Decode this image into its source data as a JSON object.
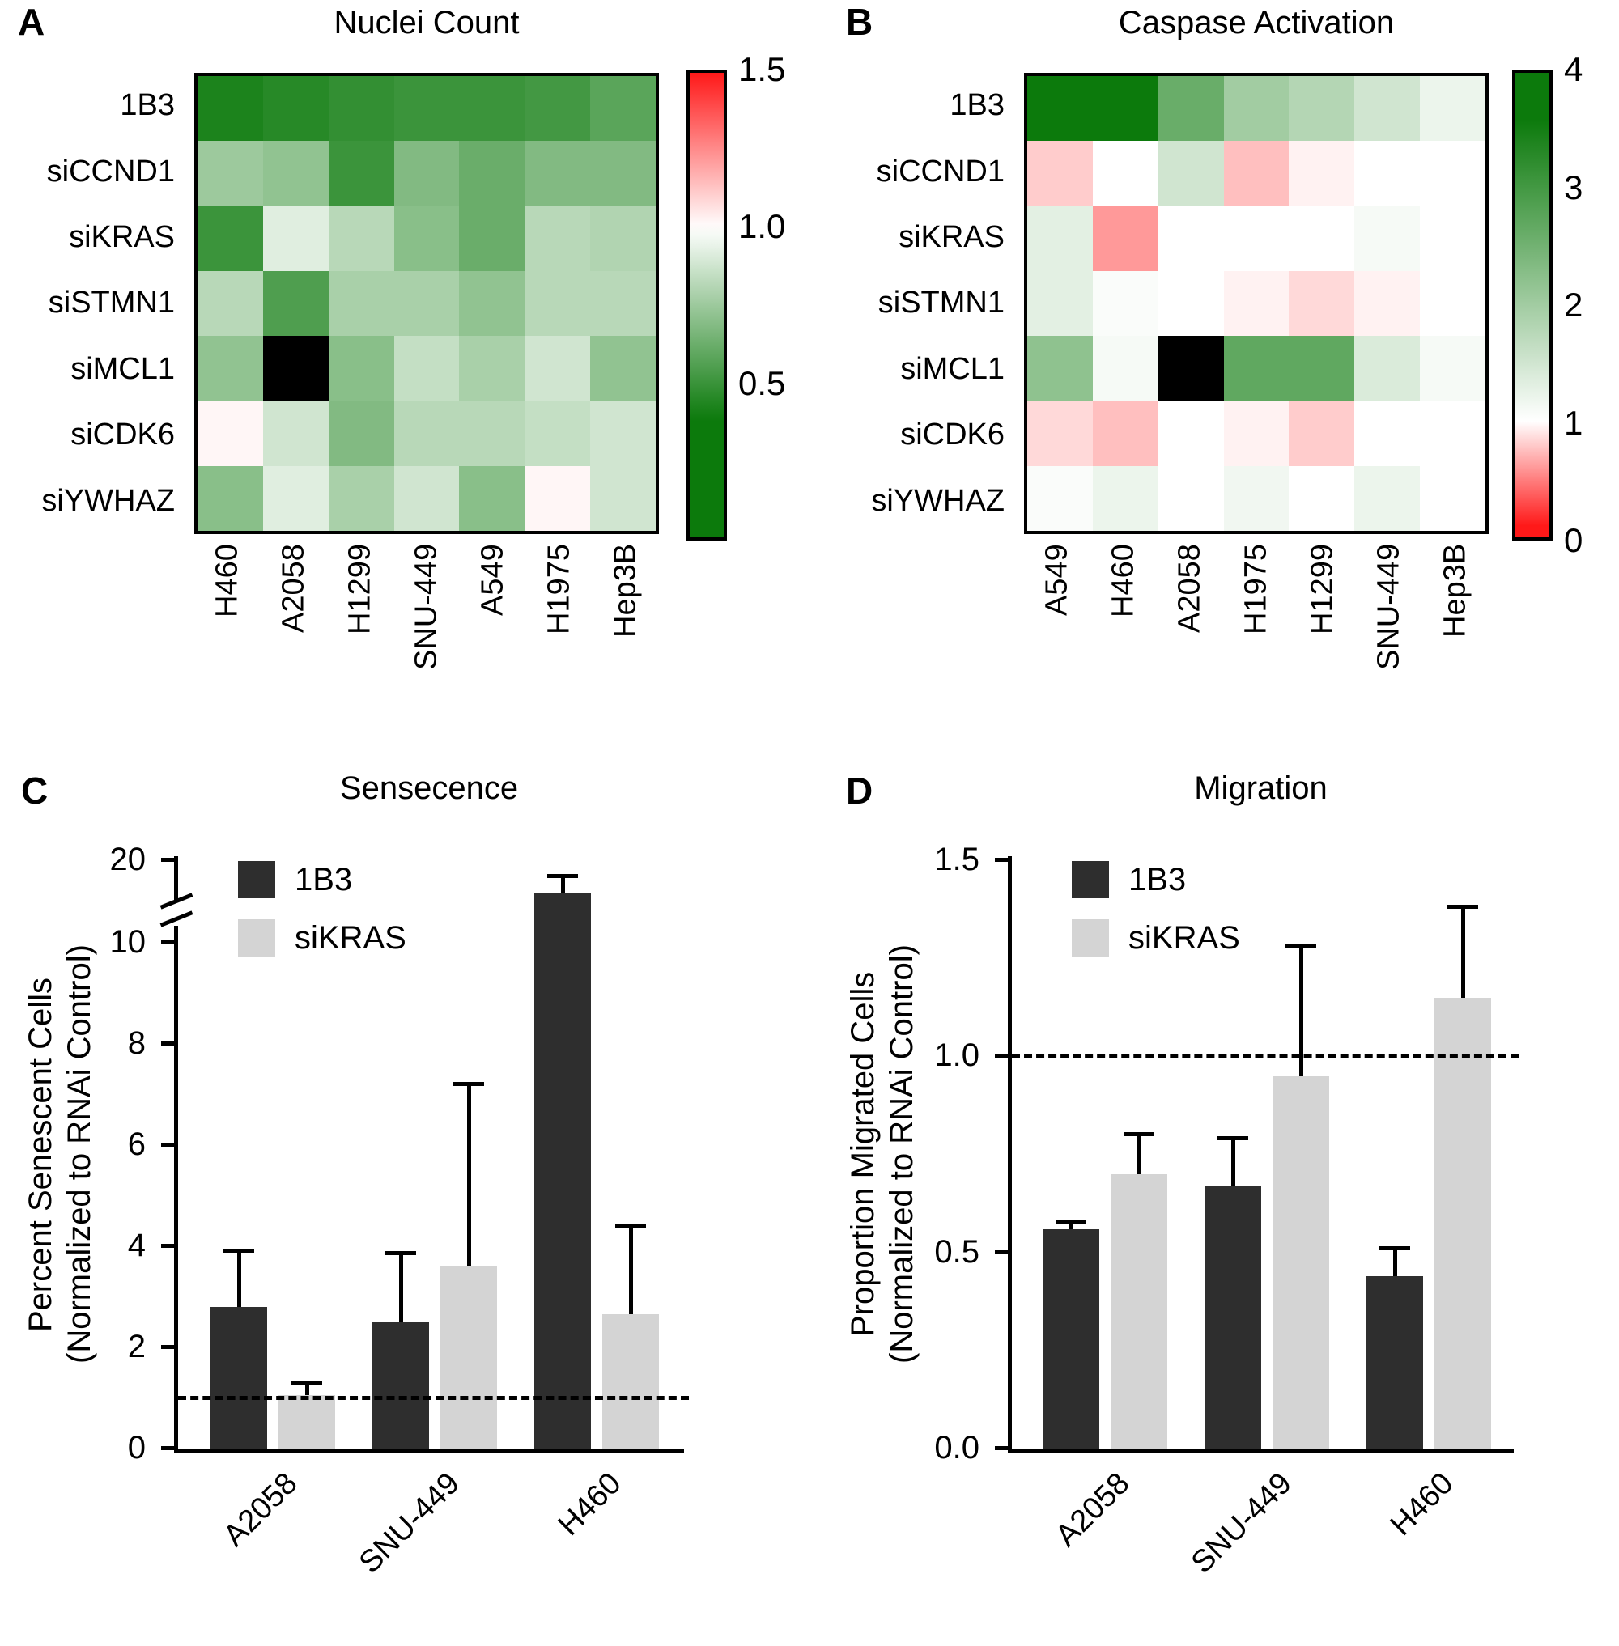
{
  "panels": {
    "A": {
      "label": "A",
      "title": "Nuclei Count"
    },
    "B": {
      "label": "B",
      "title": "Caspase Activation"
    },
    "C": {
      "label": "C",
      "title": "Sensecence"
    },
    "D": {
      "label": "D",
      "title": "Migration"
    }
  },
  "colors": {
    "series": {
      "1B3": "#2e2e2e",
      "siKRAS": "#d4d4d4"
    },
    "heat_green": "#0c7a0c",
    "heat_red": "#ff1919",
    "missing_cell": "#000000",
    "axis": "#000000"
  },
  "chart_data": [
    {
      "id": "A",
      "type": "heatmap",
      "title": "Nuclei Count",
      "rows": [
        "1B3",
        "siCCND1",
        "siKRAS",
        "siSTMN1",
        "siMCL1",
        "siCDK6",
        "siYWHAZ"
      ],
      "columns": [
        "H460",
        "A2058",
        "H1299",
        "SNU-449",
        "A549",
        "H1975",
        "Hep3B"
      ],
      "values": [
        [
          0.42,
          0.45,
          0.48,
          0.5,
          0.5,
          0.52,
          0.58
        ],
        [
          0.75,
          0.72,
          0.5,
          0.68,
          0.62,
          0.68,
          0.68
        ],
        [
          0.5,
          0.92,
          0.82,
          0.7,
          0.62,
          0.82,
          0.8
        ],
        [
          0.82,
          0.55,
          0.78,
          0.78,
          0.72,
          0.82,
          0.82
        ],
        [
          0.72,
          null,
          0.7,
          0.85,
          0.78,
          0.88,
          0.72
        ],
        [
          1.02,
          0.88,
          0.68,
          0.82,
          0.82,
          0.85,
          0.88
        ],
        [
          0.7,
          0.92,
          0.78,
          0.88,
          0.7,
          1.02,
          0.88
        ]
      ],
      "note_null_cells": "black = not measured (siMCL1 / A2058)",
      "colormap": {
        "min": 0,
        "max": 1.5,
        "center": 1.0,
        "low_color": "green",
        "high_color": "red",
        "low_span": 0.62,
        "high_span": 0.5
      },
      "colorbar_ticks": [
        {
          "v": 1.5,
          "label": "1.5"
        },
        {
          "v": 1.0,
          "label": "1.0"
        },
        {
          "v": 0.5,
          "label": "0.5"
        }
      ]
    },
    {
      "id": "B",
      "type": "heatmap",
      "title": "Caspase Activation",
      "rows": [
        "1B3",
        "siCCND1",
        "siKRAS",
        "siSTMN1",
        "siMCL1",
        "siCDK6",
        "siYWHAZ"
      ],
      "columns": [
        "A549",
        "H460",
        "A2058",
        "H1975",
        "H1299",
        "SNU-449",
        "Hep3B"
      ],
      "values": [
        [
          3.8,
          3.8,
          2.6,
          2.0,
          1.8,
          1.5,
          1.2
        ],
        [
          0.8,
          1.0,
          1.5,
          0.75,
          0.95,
          1.0,
          1.0
        ],
        [
          1.3,
          0.6,
          1.0,
          1.0,
          1.0,
          1.1,
          1.0
        ],
        [
          1.3,
          1.05,
          1.0,
          0.95,
          0.85,
          0.95,
          1.0
        ],
        [
          2.2,
          1.1,
          null,
          2.7,
          2.7,
          1.4,
          1.1
        ],
        [
          0.85,
          0.75,
          1.0,
          0.95,
          0.8,
          1.0,
          1.0
        ],
        [
          1.05,
          1.2,
          1.0,
          1.15,
          1.0,
          1.2,
          1.0
        ]
      ],
      "note_null_cells": "black = not measured (siMCL1 / A2058)",
      "colormap": {
        "min": 0,
        "max": 4,
        "center": 1.0,
        "low_color": "red",
        "high_color": "green",
        "low_span": 0.9,
        "high_span": 2.6
      },
      "colorbar_ticks": [
        {
          "v": 4,
          "label": "4"
        },
        {
          "v": 3,
          "label": "3"
        },
        {
          "v": 2,
          "label": "2"
        },
        {
          "v": 1,
          "label": "1"
        },
        {
          "v": 0,
          "label": "0"
        }
      ]
    },
    {
      "id": "C",
      "type": "bar",
      "title": "Sensecence",
      "ylabel": [
        "Percent Senescent Cells",
        "(Normalized to RNAi Control)"
      ],
      "categories": [
        "A2058",
        "SNU-449",
        "H460"
      ],
      "series": [
        {
          "name": "1B3",
          "values": [
            2.8,
            2.5,
            16.0
          ],
          "errors": [
            1.1,
            1.35,
            2.0
          ]
        },
        {
          "name": "siKRAS",
          "values": [
            1.05,
            3.6,
            2.65
          ],
          "errors": [
            0.25,
            3.6,
            1.75
          ]
        }
      ],
      "yticks": [
        {
          "v": 0,
          "label": "0"
        },
        {
          "v": 2,
          "label": "2"
        },
        {
          "v": 4,
          "label": "4"
        },
        {
          "v": 6,
          "label": "6"
        },
        {
          "v": 8,
          "label": "8"
        },
        {
          "v": 10,
          "label": "10"
        },
        {
          "v": 20,
          "label": "20"
        }
      ],
      "ylim": [
        0,
        20
      ],
      "axis_break_between": [
        10,
        20
      ],
      "reference_line": 1.0,
      "legend": [
        "1B3",
        "siKRAS"
      ]
    },
    {
      "id": "D",
      "type": "bar",
      "title": "Migration",
      "ylabel": [
        "Proportion Migrated Cells",
        "(Normalized to RNAi Control)"
      ],
      "categories": [
        "A2058",
        "SNU-449",
        "H460"
      ],
      "series": [
        {
          "name": "1B3",
          "values": [
            0.56,
            0.67,
            0.44
          ],
          "errors": [
            0.015,
            0.12,
            0.07
          ]
        },
        {
          "name": "siKRAS",
          "values": [
            0.7,
            0.95,
            1.15
          ],
          "errors": [
            0.1,
            0.33,
            0.23
          ]
        }
      ],
      "yticks": [
        {
          "v": 0,
          "label": "0.0"
        },
        {
          "v": 0.5,
          "label": "0.5"
        },
        {
          "v": 1.0,
          "label": "1.0"
        },
        {
          "v": 1.5,
          "label": "1.5"
        }
      ],
      "ylim": [
        0,
        1.5
      ],
      "reference_line": 1.0,
      "legend": [
        "1B3",
        "siKRAS"
      ]
    }
  ]
}
